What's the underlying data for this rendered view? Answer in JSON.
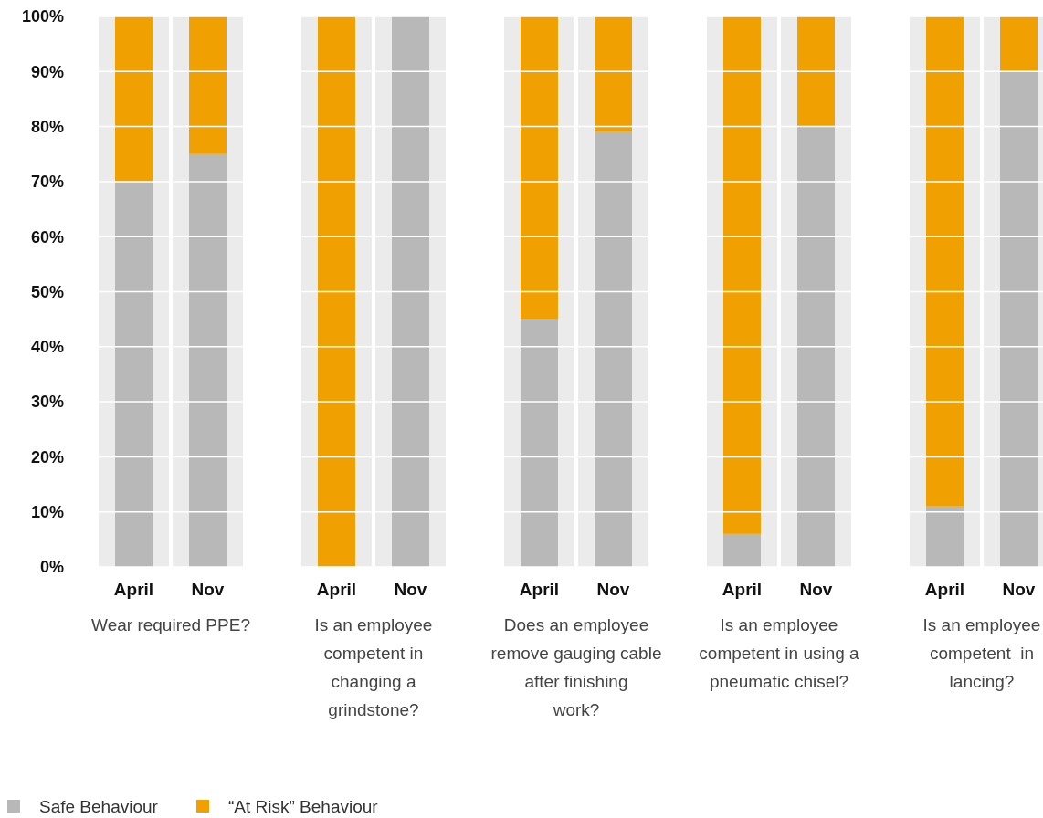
{
  "chart_data": [
    {
      "type": "bar",
      "stacked": true,
      "xlabel": "Wear required PPE?",
      "categories": [
        "April",
        "Nov"
      ],
      "series": [
        {
          "name": "Safe Behaviour",
          "color": "#b8b8b8",
          "values": [
            70,
            75
          ]
        },
        {
          "name": "“At Risk” Behaviour",
          "color": "#f0a000",
          "values": [
            30,
            25
          ]
        }
      ],
      "ylim": [
        0,
        100
      ],
      "yticks": [
        {
          "value": 0,
          "label": "0%"
        },
        {
          "value": 10,
          "label": "10%"
        },
        {
          "value": 20,
          "label": "20%"
        },
        {
          "value": 30,
          "label": "30%"
        },
        {
          "value": 40,
          "label": "40%"
        },
        {
          "value": 50,
          "label": "50%"
        },
        {
          "value": 60,
          "label": "60%"
        },
        {
          "value": 70,
          "label": "70%"
        },
        {
          "value": 80,
          "label": "80%"
        },
        {
          "value": 90,
          "label": "90%"
        },
        {
          "value": 100,
          "label": "100%"
        }
      ],
      "grid": "y",
      "legend": "bottom"
    },
    {
      "type": "bar",
      "stacked": true,
      "xlabel": "Is an employee competent in changing a grindstone?",
      "categories": [
        "April",
        "Nov"
      ],
      "series": [
        {
          "color": "#b8b8b8",
          "values": [
            0,
            100
          ]
        },
        {
          "color": "#f0a000",
          "values": [
            100,
            0
          ]
        }
      ],
      "ylim": [
        0,
        100
      ],
      "yticks": [
        0,
        10,
        20,
        30,
        40,
        50,
        60,
        70,
        80,
        90,
        100
      ],
      "grid": "y",
      "tick_labels": "x"
    },
    {
      "type": "bar",
      "stacked": true,
      "xlabel": "Does an employee remove gauging cable after finishing work?",
      "categories": [
        "April",
        "Nov"
      ],
      "series": [
        {
          "color": "#b8b8b8",
          "values": [
            45,
            79
          ]
        },
        {
          "color": "#f0a000",
          "values": [
            55,
            21
          ]
        }
      ],
      "ylim": [
        0,
        100
      ],
      "yticks": [
        0,
        10,
        20,
        30,
        40,
        50,
        60,
        70,
        80,
        90,
        100
      ],
      "grid": "y",
      "tick_labels": "x"
    },
    {
      "type": "bar",
      "stacked": true,
      "xlabel": "Is an employee competent in using a pneumatic chisel?",
      "categories": [
        "April",
        "Nov"
      ],
      "series": [
        {
          "color": "#b8b8b8",
          "values": [
            6,
            80
          ]
        },
        {
          "color": "#f0a000",
          "values": [
            94,
            20
          ]
        }
      ],
      "ylim": [
        0,
        100
      ],
      "yticks": [
        0,
        10,
        20,
        30,
        40,
        50,
        60,
        70,
        80,
        90,
        100
      ],
      "grid": "y",
      "tick_labels": "x"
    },
    {
      "type": "bar",
      "stacked": true,
      "xlabel": "Is an employee competent  in lancing?",
      "categories": [
        "April",
        "Nov"
      ],
      "series": [
        {
          "color": "#b8b8b8",
          "values": [
            11,
            90
          ]
        },
        {
          "color": "#f0a000",
          "values": [
            89,
            10
          ]
        }
      ],
      "ylim": [
        0,
        100
      ],
      "yticks": [
        0,
        10,
        20,
        30,
        40,
        50,
        60,
        70,
        80,
        90,
        100
      ],
      "grid": "y",
      "tick_labels": "x"
    }
  ]
}
